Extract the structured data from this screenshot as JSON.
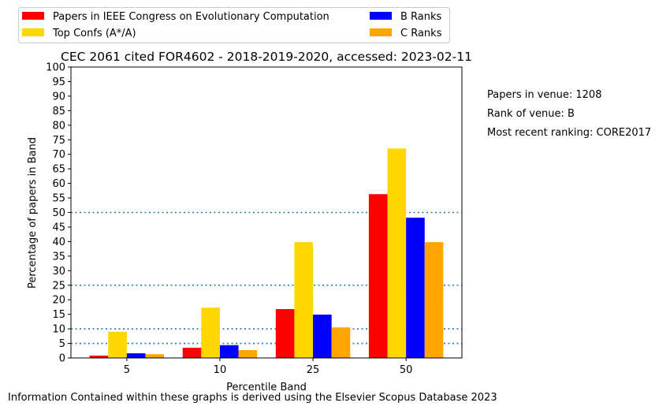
{
  "chart_data": {
    "type": "bar",
    "title": "CEC 2061 cited FOR4602 - 2018-2019-2020, accessed: 2023-02-11",
    "xlabel": "Percentile Band",
    "ylabel": "Percentage of papers in Band",
    "categories": [
      "5",
      "10",
      "25",
      "50"
    ],
    "ylim": [
      0,
      100
    ],
    "yticks": [
      0,
      5,
      10,
      15,
      20,
      25,
      30,
      35,
      40,
      45,
      50,
      55,
      60,
      65,
      70,
      75,
      80,
      85,
      90,
      95,
      100
    ],
    "reference_lines": [
      5,
      10,
      25,
      50
    ],
    "reference_line_color": "#1f77b4",
    "legend_placement": "top-left, outside plot",
    "series": [
      {
        "name": "Papers in IEEE Congress on Evolutionary Computation",
        "color": "#ff0000",
        "values": [
          0.8,
          3.5,
          16.8,
          56.3
        ]
      },
      {
        "name": "Top Confs (A*/A)",
        "color": "#ffd700",
        "values": [
          9.0,
          17.3,
          39.8,
          72.0
        ]
      },
      {
        "name": "B Ranks",
        "color": "#0000ff",
        "values": [
          1.6,
          4.4,
          14.9,
          48.2
        ]
      },
      {
        "name": "C Ranks",
        "color": "#ffa500",
        "values": [
          1.3,
          2.7,
          10.5,
          39.8
        ]
      }
    ],
    "annotations": [
      "Papers in venue: 1208",
      "Rank of venue: B",
      "Most recent ranking: CORE2017"
    ],
    "footer": "Information Contained within these graphs is derived using the Elsevier Scopus Database 2023"
  }
}
